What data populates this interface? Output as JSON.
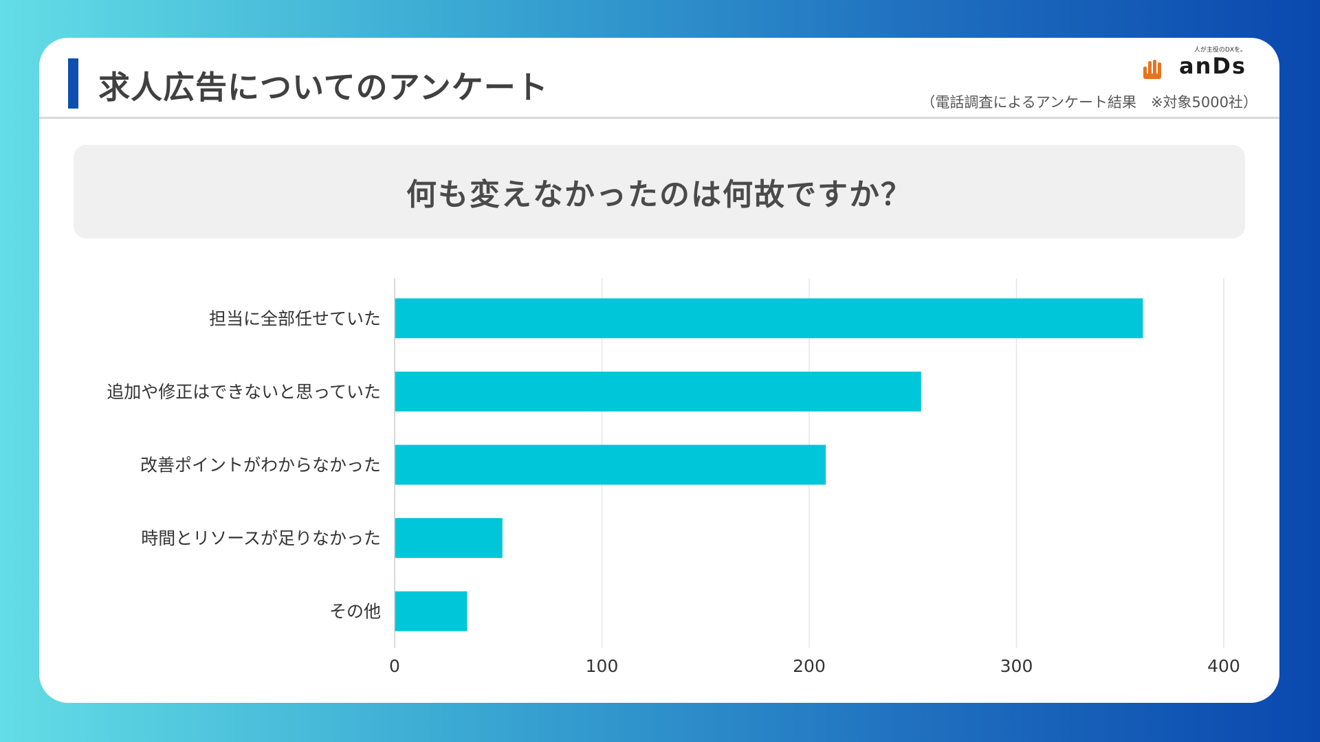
{
  "header": {
    "title": "求人広告についてのアンケート",
    "subtitle": "（電話調査によるアンケート結果　※対象5000社）",
    "logo_tagline": "人が主役のDXを。",
    "logo_text": "anDs",
    "logo_icon": "hand-icon"
  },
  "question": "何も変えなかったのは何故ですか？",
  "colors": {
    "bar": "#00c6d9",
    "accent": "#0c4fb0",
    "grid": "#e6e6e6"
  },
  "chart_data": {
    "type": "bar",
    "orientation": "horizontal",
    "categories": [
      "担当に全部任せていた",
      "追加や修正はできないと思っていた",
      "改善ポイントがわからなかった",
      "時間とリソースが足りなかった",
      "その他"
    ],
    "values": [
      361,
      254,
      208,
      52,
      35
    ],
    "xlim": [
      0,
      400
    ],
    "xticks": [
      0,
      100,
      200,
      300,
      400
    ],
    "grid": true
  }
}
